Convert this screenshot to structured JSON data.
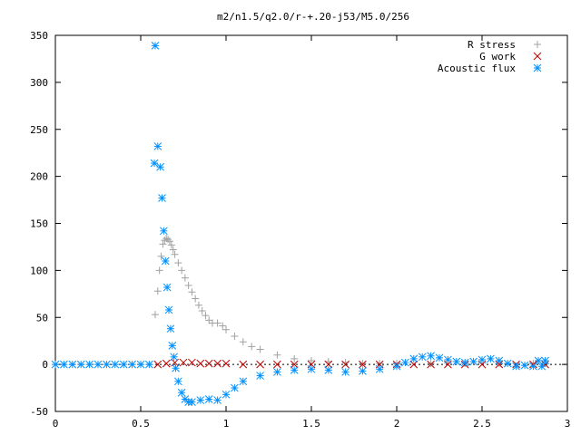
{
  "chart_data": {
    "type": "scatter",
    "title": "m2/n1.5/q2.0/r-+.20-j53/M5.0/256",
    "xlabel": "",
    "ylabel": "",
    "xlim": [
      0,
      3
    ],
    "ylim": [
      -50,
      350
    ],
    "x_ticks": [
      "0",
      "0.5",
      "1",
      "1.5",
      "2",
      "2.5",
      "3"
    ],
    "y_ticks": [
      "-50",
      "0",
      "50",
      "100",
      "150",
      "200",
      "250",
      "300",
      "350"
    ],
    "grid": false,
    "legend_position": "top-right",
    "series": [
      {
        "name": "R stress",
        "marker": "plus",
        "color": "#a0a0a0",
        "x": [
          0.585,
          0.6,
          0.61,
          0.62,
          0.63,
          0.64,
          0.65,
          0.66,
          0.67,
          0.68,
          0.69,
          0.7,
          0.72,
          0.74,
          0.76,
          0.78,
          0.8,
          0.82,
          0.84,
          0.86,
          0.88,
          0.9,
          0.92,
          0.95,
          0.98,
          1.0,
          1.05,
          1.1,
          1.15,
          1.2,
          1.3,
          1.4,
          1.5,
          1.6,
          1.7,
          1.8,
          1.9,
          2.0,
          2.2,
          2.4,
          2.6,
          2.8,
          2.87
        ],
        "y": [
          53,
          78,
          100,
          115,
          128,
          132,
          134,
          133,
          131,
          127,
          122,
          117,
          108,
          100,
          92,
          84,
          77,
          70,
          63,
          57,
          52,
          47,
          44,
          44,
          41,
          37,
          30,
          24,
          19,
          16,
          10,
          6,
          4,
          3,
          2,
          1,
          1,
          1,
          1,
          1,
          1,
          1,
          1
        ]
      },
      {
        "name": "G work",
        "marker": "cross",
        "color": "#c00000",
        "x": [
          0.6,
          0.65,
          0.7,
          0.75,
          0.8,
          0.85,
          0.9,
          0.95,
          1.0,
          1.1,
          1.2,
          1.3,
          1.4,
          1.5,
          1.6,
          1.7,
          1.8,
          1.9,
          2.0,
          2.1,
          2.2,
          2.3,
          2.4,
          2.5,
          2.6,
          2.7,
          2.8,
          2.87
        ],
        "y": [
          0,
          1,
          2,
          2,
          2,
          1,
          1,
          1,
          1,
          0,
          0,
          0,
          0,
          0,
          0,
          0,
          0,
          0,
          0,
          0,
          0,
          0,
          0,
          0,
          0,
          0,
          0,
          0
        ]
      },
      {
        "name": "Acoustic flux",
        "marker": "star",
        "color": "#0090ff",
        "x": [
          0.0,
          0.05,
          0.1,
          0.15,
          0.2,
          0.25,
          0.3,
          0.35,
          0.4,
          0.45,
          0.5,
          0.55,
          0.58,
          0.585,
          0.6,
          0.615,
          0.625,
          0.635,
          0.645,
          0.655,
          0.665,
          0.675,
          0.685,
          0.695,
          0.705,
          0.72,
          0.74,
          0.76,
          0.78,
          0.8,
          0.85,
          0.9,
          0.95,
          1.0,
          1.05,
          1.1,
          1.2,
          1.3,
          1.4,
          1.5,
          1.6,
          1.7,
          1.8,
          1.9,
          2.0,
          2.05,
          2.1,
          2.15,
          2.2,
          2.25,
          2.3,
          2.35,
          2.4,
          2.45,
          2.5,
          2.55,
          2.6,
          2.65,
          2.7,
          2.75,
          2.8,
          2.83,
          2.85,
          2.87
        ],
        "y": [
          0,
          0,
          0,
          0,
          0,
          0,
          0,
          0,
          0,
          0,
          0,
          0,
          214,
          339,
          232,
          210,
          177,
          142,
          110,
          82,
          58,
          38,
          20,
          8,
          -4,
          -18,
          -30,
          -37,
          -40,
          -40,
          -38,
          -37,
          -38,
          -32,
          -25,
          -18,
          -12,
          -8,
          -6,
          -5,
          -6,
          -8,
          -7,
          -5,
          -2,
          2,
          6,
          8,
          9,
          7,
          5,
          3,
          2,
          3,
          5,
          6,
          4,
          1,
          -2,
          -1,
          -2,
          4,
          -2,
          4
        ]
      }
    ]
  }
}
